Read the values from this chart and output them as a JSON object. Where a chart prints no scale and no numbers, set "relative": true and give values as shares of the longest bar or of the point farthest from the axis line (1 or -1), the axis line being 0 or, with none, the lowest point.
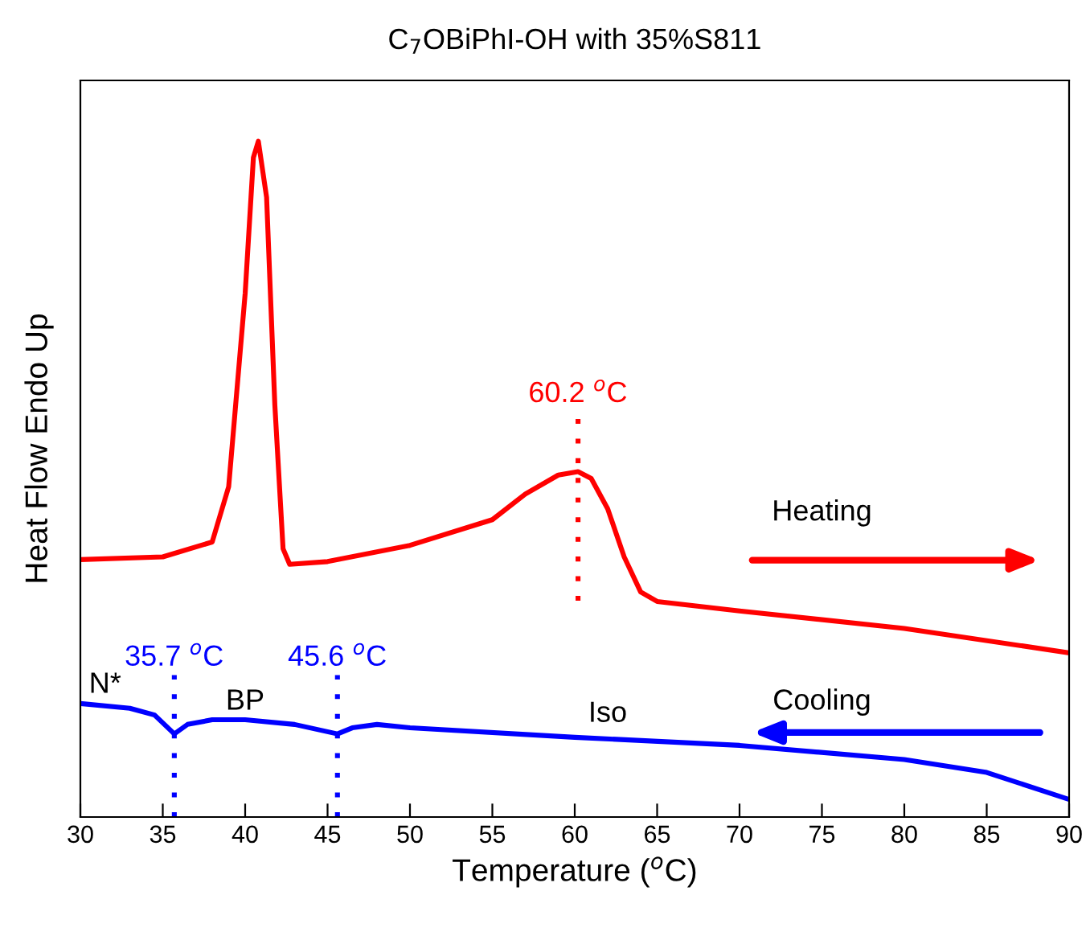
{
  "chart_data": {
    "type": "line",
    "title": "C$_{7}$OBiPhI-OH with 35%S811",
    "xlabel": "Temperature ($^{o}$C)",
    "ylabel": "Heat Flow Endo Up",
    "relative": true,
    "xlim": [
      30,
      90
    ],
    "xticks": [
      30,
      35,
      40,
      45,
      50,
      55,
      60,
      65,
      70,
      75,
      80,
      85,
      90
    ],
    "grid": false,
    "legend": false,
    "marker": "none",
    "line_style": "solid",
    "series": [
      {
        "color": "#ff0000",
        "x": [
          30,
          35,
          38,
          39,
          40,
          40.5,
          40.8,
          41.3,
          41.8,
          42.3,
          42.7,
          45,
          50,
          55,
          57,
          59,
          60.2,
          61,
          62,
          63,
          64,
          65,
          70,
          80,
          90
        ],
        "values": [
          0.381,
          0.385,
          0.407,
          0.489,
          0.775,
          0.976,
          1.0,
          0.917,
          0.61,
          0.397,
          0.374,
          0.378,
          0.402,
          0.44,
          0.478,
          0.506,
          0.511,
          0.501,
          0.456,
          0.385,
          0.333,
          0.319,
          0.305,
          0.279,
          0.243
        ]
      },
      {
        "color": "#0000ff",
        "x": [
          30,
          33,
          34.5,
          35.7,
          36.5,
          38,
          40,
          43,
          45.6,
          46.5,
          48,
          50,
          60,
          70,
          80,
          85,
          90
        ],
        "values": [
          0.168,
          0.161,
          0.151,
          0.123,
          0.137,
          0.144,
          0.144,
          0.137,
          0.123,
          0.132,
          0.137,
          0.132,
          0.118,
          0.106,
          0.085,
          0.066,
          0.026
        ]
      }
    ],
    "ref_lines": [
      {
        "axis": "x",
        "value": 60.2,
        "label": "60.2 $^{o}$C",
        "color": "#ff0000",
        "line_style": "dotted"
      },
      {
        "axis": "x",
        "value": 35.7,
        "label": "35.7 $^{o}$C",
        "color": "#0000ff",
        "line_style": "dotted"
      },
      {
        "axis": "x",
        "value": 45.6,
        "label": "45.6 $^{o}$C",
        "color": "#0000ff",
        "line_style": "dotted"
      }
    ],
    "annotations": [
      "Heating",
      "Cooling",
      "N*",
      "BP",
      "Iso"
    ]
  }
}
